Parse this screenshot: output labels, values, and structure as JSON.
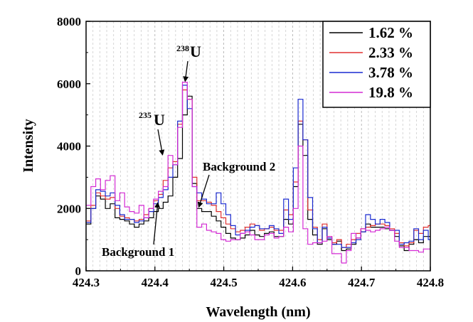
{
  "chart_data": {
    "type": "line",
    "line_shape": "step",
    "xlabel": "Wavelength (nm)",
    "ylabel": "Intensity",
    "xlim": [
      424.3,
      424.8
    ],
    "ylim": [
      0,
      8000
    ],
    "x_ticks": [
      "424.3",
      "424.4",
      "424.5",
      "424.6",
      "424.7",
      "424.8"
    ],
    "y_ticks": [
      "0",
      "2000",
      "4000",
      "6000",
      "8000"
    ],
    "grid": "vertical dashed gray",
    "legend_position": "top-right",
    "x": [
      424.3,
      424.307,
      424.314,
      424.321,
      424.328,
      424.335,
      424.342,
      424.349,
      424.356,
      424.363,
      424.37,
      424.377,
      424.384,
      424.391,
      424.398,
      424.405,
      424.412,
      424.419,
      424.426,
      424.433,
      424.44,
      424.447,
      424.454,
      424.461,
      424.468,
      424.475,
      424.482,
      424.489,
      424.496,
      424.503,
      424.51,
      424.517,
      424.524,
      424.531,
      424.538,
      424.545,
      424.552,
      424.559,
      424.566,
      424.573,
      424.58,
      424.587,
      424.594,
      424.601,
      424.608,
      424.615,
      424.622,
      424.629,
      424.636,
      424.643,
      424.65,
      424.657,
      424.664,
      424.671,
      424.678,
      424.685,
      424.692,
      424.699,
      424.706,
      424.713,
      424.72,
      424.727,
      424.734,
      424.741,
      424.748,
      424.755,
      424.762,
      424.769,
      424.776,
      424.783,
      424.79,
      424.797
    ],
    "series": [
      {
        "name": "1.62 %",
        "color": "#000000",
        "values": [
          1500,
          2000,
          2400,
          2300,
          2000,
          2150,
          1700,
          1650,
          1600,
          1500,
          1400,
          1500,
          1600,
          1700,
          1900,
          2000,
          2200,
          2400,
          3000,
          3600,
          5000,
          5600,
          2800,
          2000,
          1900,
          1900,
          1750,
          1600,
          1400,
          1200,
          1050,
          1000,
          1050,
          1150,
          1300,
          1150,
          1100,
          1200,
          1250,
          1100,
          1100,
          1650,
          1500,
          2700,
          4700,
          3700,
          1650,
          1150,
          850,
          1350,
          1000,
          850,
          950,
          650,
          700,
          850,
          1050,
          1250,
          1500,
          1400,
          1400,
          1400,
          1350,
          1300,
          1100,
          800,
          650,
          850,
          1000,
          900,
          1100,
          1100
        ]
      },
      {
        "name": "2.33 %",
        "color": "#e03030",
        "values": [
          1600,
          2100,
          2500,
          2400,
          2300,
          2350,
          2000,
          1750,
          1700,
          1650,
          1600,
          1650,
          1800,
          2000,
          2250,
          2450,
          2900,
          3300,
          3500,
          4700,
          5800,
          5500,
          3000,
          2250,
          2250,
          2200,
          2100,
          1900,
          1700,
          1500,
          1350,
          1250,
          1300,
          1400,
          1500,
          1450,
          1300,
          1350,
          1400,
          1300,
          1300,
          1950,
          1800,
          2850,
          4800,
          4200,
          1950,
          1400,
          1000,
          1500,
          1100,
          900,
          1000,
          750,
          850,
          1000,
          1200,
          1350,
          1400,
          1450,
          1500,
          1500,
          1450,
          1350,
          1200,
          900,
          800,
          900,
          1300,
          1200,
          1400,
          1450
        ]
      },
      {
        "name": "3.78 %",
        "color": "#1a2ad0",
        "values": [
          1550,
          2000,
          2600,
          2550,
          2400,
          2500,
          2100,
          1800,
          1650,
          1650,
          1550,
          1600,
          1700,
          1900,
          2150,
          2350,
          2600,
          3000,
          3400,
          4800,
          5950,
          5200,
          2700,
          2500,
          2300,
          2150,
          2150,
          2500,
          2150,
          1800,
          1450,
          1150,
          1200,
          1300,
          1400,
          1450,
          1350,
          1350,
          1450,
          1350,
          1200,
          2300,
          1650,
          3300,
          5500,
          4200,
          2350,
          1350,
          900,
          1400,
          1050,
          850,
          850,
          750,
          750,
          900,
          1000,
          1250,
          1800,
          1650,
          1500,
          1650,
          1550,
          1300,
          1300,
          850,
          900,
          950,
          1350,
          1000,
          1300,
          1000
        ]
      },
      {
        "name": "19.8 %",
        "color": "#d42ad4",
        "values": [
          2100,
          2700,
          2950,
          2600,
          2900,
          3050,
          2250,
          2500,
          2050,
          1900,
          1850,
          2100,
          1700,
          2000,
          2300,
          2550,
          2700,
          3700,
          3400,
          4600,
          6050,
          5500,
          2700,
          1400,
          1500,
          1300,
          1250,
          1200,
          1000,
          950,
          1000,
          1000,
          1200,
          1250,
          1150,
          1000,
          1000,
          1150,
          1200,
          1050,
          1100,
          1400,
          1250,
          2000,
          4000,
          1350,
          850,
          900,
          900,
          950,
          1100,
          550,
          550,
          250,
          650,
          1200,
          1050,
          1350,
          1300,
          1250,
          1300,
          1350,
          1400,
          1300,
          950,
          750,
          750,
          650,
          650,
          600,
          700,
          700
        ]
      }
    ],
    "annotations": [
      {
        "sup": "238",
        "label": "U",
        "x": 424.444,
        "y": 6050
      },
      {
        "sup": "235",
        "label": "U",
        "x": 424.412,
        "y": 3650
      },
      {
        "label": "Background 2",
        "x": 424.462,
        "y": 2200
      },
      {
        "label": "Background 1",
        "x": 424.402,
        "y": 2300
      }
    ]
  }
}
